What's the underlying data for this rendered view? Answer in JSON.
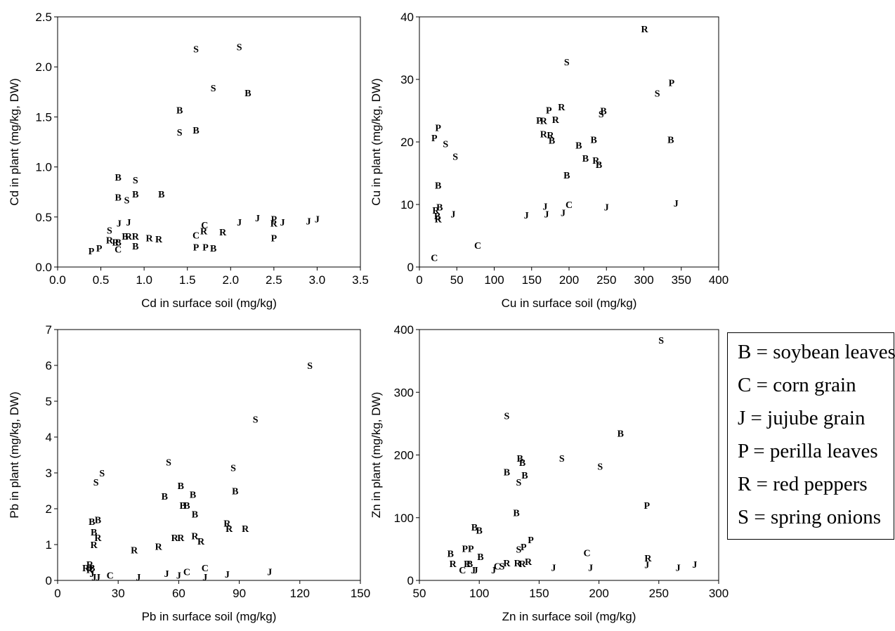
{
  "legend": {
    "entries": [
      "B = soybean leaves",
      "C = corn grain",
      "J = jujube grain",
      "P = perilla leaves",
      "R = red peppers",
      "S = spring onions"
    ]
  },
  "chart_data": [
    {
      "type": "scatter",
      "xlabel": "Cd in surface soil (mg/kg)",
      "ylabel": "Cd in plant (mg/kg, DW)",
      "xlim": [
        0.0,
        3.5
      ],
      "ylim": [
        0.0,
        2.5
      ],
      "xticks": [
        "0.0",
        "0.5",
        "1.0",
        "1.5",
        "2.0",
        "2.5",
        "3.0",
        "3.5"
      ],
      "yticks": [
        "0.0",
        "0.5",
        "1.0",
        "1.5",
        "2.0",
        "2.5"
      ],
      "points": [
        {
          "x": 0.39,
          "y": 0.16,
          "label": "P"
        },
        {
          "x": 0.48,
          "y": 0.19,
          "label": "P"
        },
        {
          "x": 0.6,
          "y": 0.37,
          "label": "S"
        },
        {
          "x": 0.6,
          "y": 0.27,
          "label": "R"
        },
        {
          "x": 0.67,
          "y": 0.25,
          "label": "R"
        },
        {
          "x": 0.7,
          "y": 0.25,
          "label": "B"
        },
        {
          "x": 0.7,
          "y": 0.18,
          "label": "C"
        },
        {
          "x": 0.71,
          "y": 0.44,
          "label": "J"
        },
        {
          "x": 0.82,
          "y": 0.45,
          "label": "J"
        },
        {
          "x": 0.78,
          "y": 0.31,
          "label": "B"
        },
        {
          "x": 0.82,
          "y": 0.31,
          "label": "R"
        },
        {
          "x": 0.9,
          "y": 0.31,
          "label": "R"
        },
        {
          "x": 0.9,
          "y": 0.21,
          "label": "B"
        },
        {
          "x": 1.06,
          "y": 0.29,
          "label": "R"
        },
        {
          "x": 1.17,
          "y": 0.28,
          "label": "R"
        },
        {
          "x": 0.7,
          "y": 0.9,
          "label": "B"
        },
        {
          "x": 0.9,
          "y": 0.87,
          "label": "S"
        },
        {
          "x": 0.7,
          "y": 0.7,
          "label": "B"
        },
        {
          "x": 0.8,
          "y": 0.67,
          "label": "S"
        },
        {
          "x": 0.9,
          "y": 0.73,
          "label": "B"
        },
        {
          "x": 1.2,
          "y": 0.73,
          "label": "B"
        },
        {
          "x": 1.41,
          "y": 1.57,
          "label": "B"
        },
        {
          "x": 1.41,
          "y": 1.35,
          "label": "S"
        },
        {
          "x": 1.6,
          "y": 1.37,
          "label": "B"
        },
        {
          "x": 1.6,
          "y": 2.18,
          "label": "S"
        },
        {
          "x": 1.8,
          "y": 1.79,
          "label": "S"
        },
        {
          "x": 2.1,
          "y": 2.2,
          "label": "S"
        },
        {
          "x": 2.2,
          "y": 1.74,
          "label": "B"
        },
        {
          "x": 1.6,
          "y": 0.32,
          "label": "C"
        },
        {
          "x": 1.6,
          "y": 0.2,
          "label": "P"
        },
        {
          "x": 1.7,
          "y": 0.42,
          "label": "C"
        },
        {
          "x": 1.69,
          "y": 0.36,
          "label": "R"
        },
        {
          "x": 1.71,
          "y": 0.2,
          "label": "P"
        },
        {
          "x": 1.8,
          "y": 0.19,
          "label": "B"
        },
        {
          "x": 1.91,
          "y": 0.35,
          "label": "R"
        },
        {
          "x": 2.1,
          "y": 0.45,
          "label": "J"
        },
        {
          "x": 2.31,
          "y": 0.49,
          "label": "J"
        },
        {
          "x": 2.5,
          "y": 0.48,
          "label": "P"
        },
        {
          "x": 2.5,
          "y": 0.44,
          "label": "R"
        },
        {
          "x": 2.6,
          "y": 0.45,
          "label": "J"
        },
        {
          "x": 2.5,
          "y": 0.29,
          "label": "P"
        },
        {
          "x": 2.9,
          "y": 0.46,
          "label": "J"
        },
        {
          "x": 3.0,
          "y": 0.48,
          "label": "J"
        }
      ]
    },
    {
      "type": "scatter",
      "xlabel": "Cu in surface soil (mg/kg)",
      "ylabel": "Cu in plant (mg/kg, DW)",
      "xlim": [
        0,
        400
      ],
      "ylim": [
        0,
        40
      ],
      "xticks": [
        "0",
        "50",
        "100",
        "150",
        "200",
        "250",
        "300",
        "350",
        "400"
      ],
      "yticks": [
        "0",
        "10",
        "20",
        "30",
        "40"
      ],
      "points": [
        {
          "x": 20,
          "y": 1.5,
          "label": "C"
        },
        {
          "x": 78,
          "y": 3.5,
          "label": "C"
        },
        {
          "x": 20,
          "y": 20.7,
          "label": "P"
        },
        {
          "x": 25,
          "y": 22.3,
          "label": "P"
        },
        {
          "x": 35,
          "y": 19.7,
          "label": "S"
        },
        {
          "x": 48,
          "y": 17.7,
          "label": "S"
        },
        {
          "x": 25,
          "y": 13.1,
          "label": "B"
        },
        {
          "x": 27,
          "y": 9.6,
          "label": "B"
        },
        {
          "x": 22,
          "y": 9.1,
          "label": "R"
        },
        {
          "x": 24,
          "y": 8.2,
          "label": "B"
        },
        {
          "x": 25,
          "y": 7.7,
          "label": "R"
        },
        {
          "x": 45,
          "y": 8.5,
          "label": "J"
        },
        {
          "x": 143,
          "y": 8.3,
          "label": "J"
        },
        {
          "x": 168,
          "y": 9.7,
          "label": "J"
        },
        {
          "x": 170,
          "y": 8.5,
          "label": "J"
        },
        {
          "x": 192,
          "y": 8.7,
          "label": "J"
        },
        {
          "x": 200,
          "y": 10.0,
          "label": "C"
        },
        {
          "x": 250,
          "y": 9.6,
          "label": "J"
        },
        {
          "x": 343,
          "y": 10.2,
          "label": "J"
        },
        {
          "x": 173,
          "y": 25.1,
          "label": "P"
        },
        {
          "x": 160,
          "y": 23.5,
          "label": "P"
        },
        {
          "x": 166,
          "y": 23.4,
          "label": "R"
        },
        {
          "x": 182,
          "y": 23.6,
          "label": "R"
        },
        {
          "x": 190,
          "y": 25.6,
          "label": "R"
        },
        {
          "x": 166,
          "y": 21.3,
          "label": "R"
        },
        {
          "x": 175,
          "y": 21.1,
          "label": "R"
        },
        {
          "x": 177,
          "y": 20.3,
          "label": "B"
        },
        {
          "x": 213,
          "y": 19.5,
          "label": "B"
        },
        {
          "x": 197,
          "y": 14.7,
          "label": "B"
        },
        {
          "x": 222,
          "y": 17.4,
          "label": "B"
        },
        {
          "x": 236,
          "y": 17.1,
          "label": "R"
        },
        {
          "x": 240,
          "y": 16.4,
          "label": "B"
        },
        {
          "x": 233,
          "y": 20.4,
          "label": "B"
        },
        {
          "x": 197,
          "y": 32.8,
          "label": "S"
        },
        {
          "x": 243,
          "y": 24.5,
          "label": "S"
        },
        {
          "x": 246,
          "y": 25.0,
          "label": "B"
        },
        {
          "x": 301,
          "y": 38.1,
          "label": "R"
        },
        {
          "x": 318,
          "y": 27.8,
          "label": "S"
        },
        {
          "x": 337,
          "y": 29.5,
          "label": "P"
        },
        {
          "x": 336,
          "y": 20.4,
          "label": "B"
        }
      ]
    },
    {
      "type": "scatter",
      "xlabel": "Pb in surface soil (mg/kg)",
      "ylabel": "Pb in plant (mg/kg, DW)",
      "xlim": [
        0,
        150
      ],
      "ylim": [
        0,
        7
      ],
      "xticks": [
        "0",
        "30",
        "60",
        "90",
        "120",
        "150"
      ],
      "yticks": [
        "0",
        "1",
        "2",
        "3",
        "4",
        "5",
        "6",
        "7"
      ],
      "points": [
        {
          "x": 14,
          "y": 0.35,
          "label": "R"
        },
        {
          "x": 16,
          "y": 0.45,
          "label": "R"
        },
        {
          "x": 16,
          "y": 0.3,
          "label": "R"
        },
        {
          "x": 17,
          "y": 0.35,
          "label": "B"
        },
        {
          "x": 17,
          "y": 0.2,
          "label": "J"
        },
        {
          "x": 18,
          "y": 0.1,
          "label": "J"
        },
        {
          "x": 20,
          "y": 0.1,
          "label": "J"
        },
        {
          "x": 26,
          "y": 0.15,
          "label": "C"
        },
        {
          "x": 40,
          "y": 0.1,
          "label": "J"
        },
        {
          "x": 54,
          "y": 0.2,
          "label": "J"
        },
        {
          "x": 60,
          "y": 0.15,
          "label": "J"
        },
        {
          "x": 64,
          "y": 0.25,
          "label": "C"
        },
        {
          "x": 73,
          "y": 0.35,
          "label": "C"
        },
        {
          "x": 73,
          "y": 0.1,
          "label": "J"
        },
        {
          "x": 84,
          "y": 0.18,
          "label": "J"
        },
        {
          "x": 105,
          "y": 0.25,
          "label": "J"
        },
        {
          "x": 17,
          "y": 1.65,
          "label": "B"
        },
        {
          "x": 20,
          "y": 1.7,
          "label": "B"
        },
        {
          "x": 18,
          "y": 1.35,
          "label": "B"
        },
        {
          "x": 20,
          "y": 1.2,
          "label": "R"
        },
        {
          "x": 18,
          "y": 1.0,
          "label": "R"
        },
        {
          "x": 19,
          "y": 2.75,
          "label": "S"
        },
        {
          "x": 22,
          "y": 3.0,
          "label": "S"
        },
        {
          "x": 38,
          "y": 0.85,
          "label": "R"
        },
        {
          "x": 50,
          "y": 0.95,
          "label": "R"
        },
        {
          "x": 53,
          "y": 2.35,
          "label": "B"
        },
        {
          "x": 55,
          "y": 3.3,
          "label": "S"
        },
        {
          "x": 58,
          "y": 1.2,
          "label": "R"
        },
        {
          "x": 61,
          "y": 1.2,
          "label": "R"
        },
        {
          "x": 61,
          "y": 2.65,
          "label": "B"
        },
        {
          "x": 62,
          "y": 2.1,
          "label": "B"
        },
        {
          "x": 64,
          "y": 2.1,
          "label": "B"
        },
        {
          "x": 67,
          "y": 2.4,
          "label": "B"
        },
        {
          "x": 68,
          "y": 1.85,
          "label": "B"
        },
        {
          "x": 68,
          "y": 1.25,
          "label": "R"
        },
        {
          "x": 71,
          "y": 1.1,
          "label": "R"
        },
        {
          "x": 84,
          "y": 1.6,
          "label": "R"
        },
        {
          "x": 85,
          "y": 1.45,
          "label": "R"
        },
        {
          "x": 87,
          "y": 3.15,
          "label": "S"
        },
        {
          "x": 88,
          "y": 2.5,
          "label": "B"
        },
        {
          "x": 93,
          "y": 1.45,
          "label": "R"
        },
        {
          "x": 98,
          "y": 4.5,
          "label": "S"
        },
        {
          "x": 125,
          "y": 6.0,
          "label": "S"
        }
      ]
    },
    {
      "type": "scatter",
      "xlabel": "Zn in surface soil (mg/kg)",
      "ylabel": "Zn in plant (mg/kg, DW)",
      "xlim": [
        50,
        300
      ],
      "ylim": [
        0,
        400
      ],
      "xticks": [
        "50",
        "100",
        "150",
        "200",
        "250",
        "300"
      ],
      "yticks": [
        "0",
        "100",
        "200",
        "300",
        "400"
      ],
      "points": [
        {
          "x": 76,
          "y": 43,
          "label": "B"
        },
        {
          "x": 78,
          "y": 27,
          "label": "R"
        },
        {
          "x": 86,
          "y": 17,
          "label": "C"
        },
        {
          "x": 88,
          "y": 51,
          "label": "P"
        },
        {
          "x": 93,
          "y": 51,
          "label": "P"
        },
        {
          "x": 90,
          "y": 27,
          "label": "R"
        },
        {
          "x": 92,
          "y": 27,
          "label": "B"
        },
        {
          "x": 95,
          "y": 17,
          "label": "J"
        },
        {
          "x": 97,
          "y": 17,
          "label": "J"
        },
        {
          "x": 101,
          "y": 38,
          "label": "B"
        },
        {
          "x": 96,
          "y": 85,
          "label": "B"
        },
        {
          "x": 100,
          "y": 80,
          "label": "B"
        },
        {
          "x": 112,
          "y": 17,
          "label": "J"
        },
        {
          "x": 115,
          "y": 23,
          "label": "C"
        },
        {
          "x": 119,
          "y": 23,
          "label": "S"
        },
        {
          "x": 123,
          "y": 28,
          "label": "R"
        },
        {
          "x": 132,
          "y": 28,
          "label": "R"
        },
        {
          "x": 136,
          "y": 27,
          "label": "R"
        },
        {
          "x": 141,
          "y": 30,
          "label": "R"
        },
        {
          "x": 133,
          "y": 50,
          "label": "S"
        },
        {
          "x": 137,
          "y": 54,
          "label": "P"
        },
        {
          "x": 143,
          "y": 65,
          "label": "P"
        },
        {
          "x": 131,
          "y": 108,
          "label": "B"
        },
        {
          "x": 123,
          "y": 173,
          "label": "B"
        },
        {
          "x": 133,
          "y": 157,
          "label": "S"
        },
        {
          "x": 134,
          "y": 195,
          "label": "B"
        },
        {
          "x": 136,
          "y": 188,
          "label": "B"
        },
        {
          "x": 138,
          "y": 168,
          "label": "B"
        },
        {
          "x": 123,
          "y": 263,
          "label": "S"
        },
        {
          "x": 162,
          "y": 21,
          "label": "J"
        },
        {
          "x": 169,
          "y": 195,
          "label": "S"
        },
        {
          "x": 190,
          "y": 44,
          "label": "C"
        },
        {
          "x": 193,
          "y": 21,
          "label": "J"
        },
        {
          "x": 201,
          "y": 182,
          "label": "S"
        },
        {
          "x": 218,
          "y": 235,
          "label": "B"
        },
        {
          "x": 240,
          "y": 120,
          "label": "P"
        },
        {
          "x": 240,
          "y": 25,
          "label": "J"
        },
        {
          "x": 241,
          "y": 36,
          "label": "R"
        },
        {
          "x": 252,
          "y": 383,
          "label": "S"
        },
        {
          "x": 266,
          "y": 21,
          "label": "J"
        },
        {
          "x": 280,
          "y": 26,
          "label": "J"
        }
      ]
    }
  ]
}
